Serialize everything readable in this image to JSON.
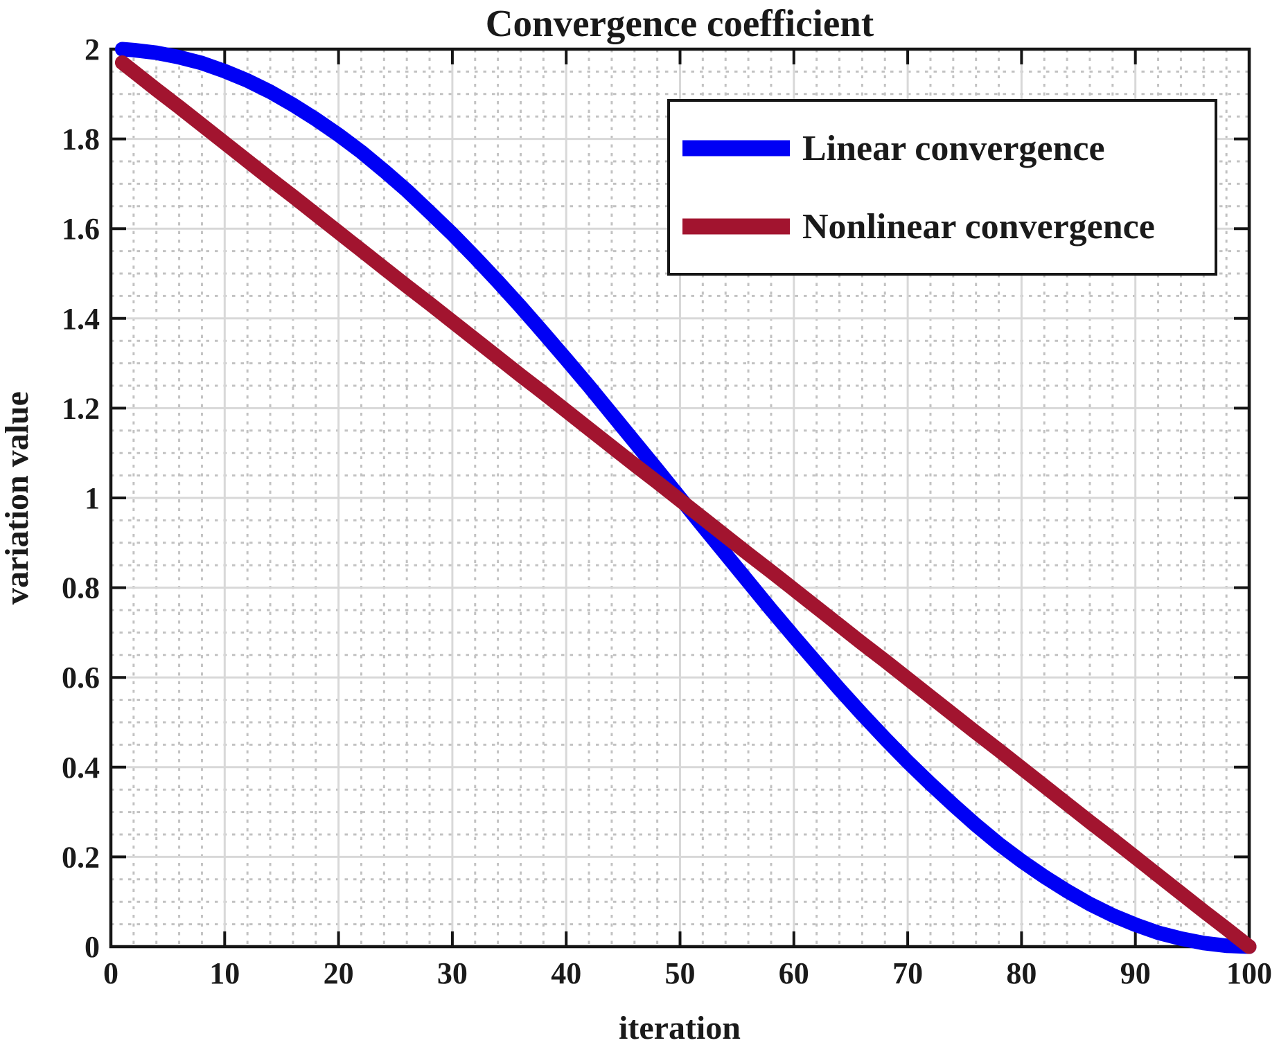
{
  "title": "Convergence coefficient",
  "axes": {
    "xlabel": "iteration",
    "ylabel": "variation value",
    "x_tick_labels": [
      "0",
      "10",
      "20",
      "30",
      "40",
      "50",
      "60",
      "70",
      "80",
      "90",
      "100"
    ],
    "y_tick_labels": [
      "0",
      "0.2",
      "0.4",
      "0.6",
      "0.8",
      "1",
      "1.2",
      "1.4",
      "1.6",
      "1.8",
      "2"
    ]
  },
  "legend": {
    "items": [
      {
        "label": "Linear convergence",
        "color": "#0000F5"
      },
      {
        "label": "Nonlinear convergence",
        "color": "#A2142F"
      }
    ],
    "position": "upper right"
  },
  "colors": {
    "series_blue": "#0000F5",
    "series_dark_red": "#A2142F",
    "grid_major": "#D8D8D8",
    "grid_minor": "#C2C2C2",
    "axis": "#151515",
    "text": "#1A1A1A",
    "background": "#FFFFFF"
  },
  "chart_data": {
    "type": "line",
    "title": "Convergence coefficient",
    "xlabel": "iteration",
    "ylabel": "variation value",
    "xlim": [
      0,
      100
    ],
    "ylim": [
      0,
      2
    ],
    "x_ticks": [
      0,
      10,
      20,
      30,
      40,
      50,
      60,
      70,
      80,
      90,
      100
    ],
    "y_ticks": [
      0,
      0.2,
      0.4,
      0.6,
      0.8,
      1,
      1.2,
      1.4,
      1.6,
      1.8,
      2
    ],
    "x_minor_step": 2,
    "y_minor_step": 0.05,
    "grid": "major solid + minor dotted",
    "legend_position": "upper right",
    "x": [
      1,
      2,
      4,
      6,
      8,
      10,
      12,
      14,
      16,
      18,
      20,
      22,
      24,
      26,
      28,
      30,
      32,
      34,
      36,
      38,
      40,
      42,
      44,
      46,
      48,
      50,
      52,
      54,
      56,
      58,
      60,
      62,
      64,
      66,
      68,
      70,
      72,
      74,
      76,
      78,
      80,
      82,
      84,
      86,
      88,
      90,
      92,
      94,
      96,
      98,
      100
    ],
    "series": [
      {
        "name": "Linear convergence",
        "color": "#0000F5",
        "line_width": 21,
        "values": [
          2.0,
          1.998,
          1.992,
          1.982,
          1.969,
          1.951,
          1.93,
          1.905,
          1.876,
          1.844,
          1.809,
          1.771,
          1.729,
          1.685,
          1.637,
          1.588,
          1.536,
          1.482,
          1.426,
          1.368,
          1.309,
          1.249,
          1.187,
          1.125,
          1.063,
          1.0,
          0.937,
          0.875,
          0.813,
          0.751,
          0.691,
          0.632,
          0.574,
          0.518,
          0.464,
          0.412,
          0.363,
          0.316,
          0.271,
          0.229,
          0.191,
          0.156,
          0.124,
          0.095,
          0.07,
          0.049,
          0.031,
          0.018,
          0.008,
          0.002,
          0.0
        ]
      },
      {
        "name": "Nonlinear convergence",
        "color": "#A2142F",
        "line_width": 21,
        "values": [
          1.97,
          1.95,
          1.91,
          1.871,
          1.831,
          1.791,
          1.751,
          1.711,
          1.672,
          1.632,
          1.592,
          1.552,
          1.512,
          1.472,
          1.433,
          1.393,
          1.353,
          1.313,
          1.273,
          1.234,
          1.194,
          1.154,
          1.114,
          1.074,
          1.035,
          0.995,
          0.955,
          0.915,
          0.875,
          0.836,
          0.796,
          0.756,
          0.716,
          0.676,
          0.637,
          0.597,
          0.557,
          0.517,
          0.477,
          0.438,
          0.398,
          0.358,
          0.318,
          0.278,
          0.239,
          0.199,
          0.159,
          0.119,
          0.079,
          0.04,
          0.0
        ]
      }
    ]
  }
}
